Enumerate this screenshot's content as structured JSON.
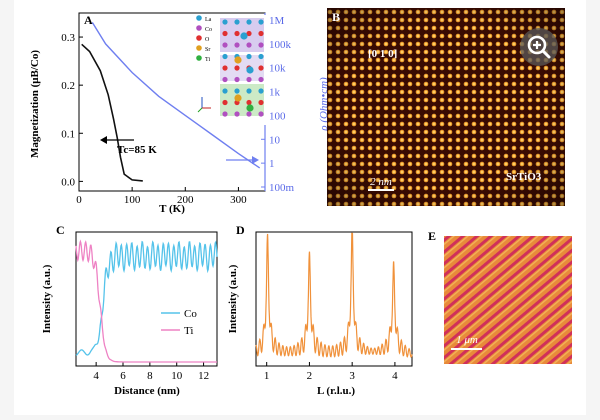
{
  "panels": {
    "a": {
      "letter": "A",
      "ylabel": "Magnetization (μB/Co)",
      "xlabel": "T (K)",
      "right_ylabel": "ρ (Ohm•cm)",
      "tc_label": "Tc=85 K",
      "x_ticks": [
        "0",
        "100",
        "200",
        "300"
      ],
      "y_ticks": [
        "0.0",
        "0.1",
        "0.2",
        "0.3"
      ],
      "right_ticks": [
        "100m",
        "1",
        "10",
        "100",
        "1k",
        "10k",
        "100k",
        "1M"
      ],
      "legend_atoms": [
        "La",
        "Co",
        "O",
        "Sr",
        "Ti"
      ]
    },
    "b": {
      "letter": "B",
      "direction": "[0 1 0]",
      "scalebar": "2 nm",
      "substrate": "SrTiO3"
    },
    "c": {
      "letter": "C",
      "ylabel": "Intensity (a.u.)",
      "xlabel": "Distance (nm)",
      "x_ticks": [
        "4",
        "6",
        "8",
        "10",
        "12"
      ],
      "legend": [
        {
          "label": "Co",
          "color": "#55c3ea"
        },
        {
          "label": "Ti",
          "color": "#ee82c4"
        }
      ]
    },
    "d": {
      "letter": "D",
      "ylabel": "Intensity (a.u.)",
      "xlabel": "L (r.l.u.)",
      "x_ticks": [
        "1",
        "2",
        "3",
        "4"
      ],
      "color": "#f0913a"
    },
    "e": {
      "letter": "E",
      "scalebar": "1 μm"
    }
  },
  "colors": {
    "magnetization": "#111111",
    "resistivity": "#6f7ff0",
    "haadf_bg": "#3a0b02",
    "haadf_dot": "#f0a030",
    "afm_base": "#e88a3a",
    "afm_stripe": "#d0305a"
  },
  "chart_data": [
    {
      "type": "line",
      "panel": "A",
      "series": [
        {
          "name": "Magnetization",
          "x": [
            5,
            20,
            40,
            55,
            65,
            72,
            78,
            85,
            100,
            120
          ],
          "y": [
            0.285,
            0.27,
            0.23,
            0.18,
            0.13,
            0.09,
            0.05,
            0.015,
            0.003,
            0.001
          ]
        },
        {
          "name": "Resistivity",
          "x": [
            25,
            50,
            100,
            150,
            200,
            250,
            300,
            340
          ],
          "log10_y": [
            5.9,
            5.0,
            3.8,
            2.8,
            2.0,
            1.2,
            0.4,
            -0.2
          ]
        }
      ],
      "xlim": [
        0,
        350
      ],
      "ylim": [
        -0.02,
        0.35
      ]
    },
    {
      "type": "line",
      "panel": "C",
      "series": [
        {
          "name": "Co",
          "x": [
            2.5,
            3.5,
            4.2,
            4.6,
            5.0,
            13.0
          ],
          "y": [
            0.08,
            0.15,
            0.3,
            0.9,
            0.95,
            0.95
          ]
        },
        {
          "name": "Ti",
          "x": [
            2.5,
            3.5,
            4.2,
            4.6,
            5.0,
            13.0
          ],
          "y": [
            0.88,
            0.85,
            0.5,
            0.12,
            0.03,
            0.02
          ]
        }
      ],
      "xlim": [
        2.5,
        13
      ]
    },
    {
      "type": "line",
      "panel": "D",
      "series": [
        {
          "name": "Intensity",
          "x": [
            0.8,
            1.0,
            1.5,
            2.0,
            2.5,
            3.0,
            3.5,
            4.0,
            4.3
          ],
          "y": [
            0.05,
            0.95,
            0.1,
            0.85,
            0.1,
            0.98,
            0.1,
            0.75,
            0.05
          ]
        }
      ],
      "xlim": [
        0.75,
        4.4
      ]
    }
  ]
}
